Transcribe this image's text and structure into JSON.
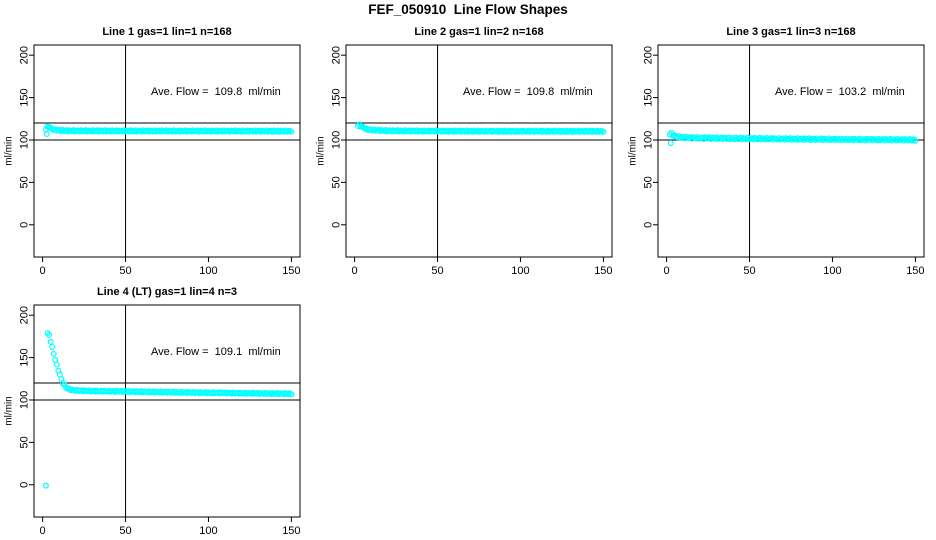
{
  "main_title": "FEF_050910  Line Flow Shapes",
  "chart_data": {
    "type": "scatter",
    "title": "FEF_050910  Line Flow Shapes",
    "xlabel": "",
    "ylabel": "ml/min",
    "xticks": [
      0,
      50,
      100,
      150
    ],
    "yticks": [
      0,
      50,
      100,
      150,
      200
    ],
    "xlim": [
      0,
      150
    ],
    "ylim": [
      0,
      200
    ],
    "x_render_range": [
      -5.2,
      155.2
    ],
    "y_render_range": [
      -38,
      212
    ],
    "grid": false,
    "legend": "none",
    "marker": "open-circle",
    "marker_radius": 2.4,
    "marker_color": "#00FFFF",
    "axis_color": "#000000",
    "background_color": "#FFFFFF",
    "reference_lines": {
      "h": [
        120,
        100
      ],
      "v": [
        50
      ]
    },
    "annotation_anchor_data_xy": [
      66,
      152
    ],
    "panels": [
      {
        "title": "Line 1 gas=1 lin=1 n=168",
        "annotation": "Ave. Flow =  109.8  ml/min",
        "ave_flow_ml_min": 109.8,
        "gas": 1,
        "lin": 1,
        "n": 168,
        "marker_count": 168,
        "jitter": 0.8,
        "trace": [
          [
            2,
            112.5
          ],
          [
            3,
            115.5
          ],
          [
            4,
            115.8
          ],
          [
            5,
            113.5
          ],
          [
            7,
            112
          ],
          [
            10,
            111.3
          ],
          [
            15,
            110.9
          ],
          [
            25,
            110.7
          ],
          [
            50,
            110.6
          ],
          [
            100,
            110.5
          ],
          [
            150,
            110.4
          ]
        ],
        "outliers": [
          [
            2.5,
            107
          ]
        ]
      },
      {
        "title": "Line 2 gas=1 lin=2 n=168",
        "annotation": "Ave. Flow =  109.8  ml/min",
        "ave_flow_ml_min": 109.8,
        "gas": 1,
        "lin": 2,
        "n": 168,
        "marker_count": 168,
        "jitter": 0.8,
        "trace": [
          [
            2,
            116.5
          ],
          [
            3,
            117.8
          ],
          [
            4,
            116.2
          ],
          [
            6,
            113.8
          ],
          [
            8,
            112.4
          ],
          [
            12,
            111.4
          ],
          [
            20,
            110.9
          ],
          [
            40,
            110.5
          ],
          [
            80,
            110.3
          ],
          [
            150,
            110.2
          ]
        ],
        "outliers": []
      },
      {
        "title": "Line 3 gas=1 lin=3 n=168",
        "annotation": "Ave. Flow =  103.2  ml/min",
        "ave_flow_ml_min": 103.2,
        "gas": 1,
        "lin": 3,
        "n": 168,
        "marker_count": 168,
        "jitter": 1.0,
        "trace": [
          [
            2,
            106.5
          ],
          [
            3,
            107.8
          ],
          [
            4,
            105.5
          ],
          [
            6,
            103.8
          ],
          [
            10,
            103
          ],
          [
            20,
            102.4
          ],
          [
            40,
            101.8
          ],
          [
            80,
            101
          ],
          [
            120,
            100.5
          ],
          [
            150,
            100.1
          ]
        ],
        "outliers": [
          [
            2.5,
            96.5
          ]
        ]
      },
      {
        "title": "Line 4 (LT) gas=1 lin=4 n=3",
        "annotation": "Ave. Flow =  109.1  ml/min",
        "ave_flow_ml_min": 109.1,
        "gas": 1,
        "lin": 4,
        "n": 3,
        "marker_count": 160,
        "jitter": 0.7,
        "trace": [
          [
            3,
            179
          ],
          [
            4,
            176
          ],
          [
            5,
            168
          ],
          [
            6,
            160
          ],
          [
            7,
            152
          ],
          [
            8,
            145
          ],
          [
            9,
            138
          ],
          [
            10,
            132
          ],
          [
            11,
            126
          ],
          [
            12,
            121
          ],
          [
            13,
            117.5
          ],
          [
            14,
            115
          ],
          [
            15,
            113.5
          ],
          [
            17,
            112
          ],
          [
            20,
            111.2
          ],
          [
            30,
            110.5
          ],
          [
            50,
            110
          ],
          [
            80,
            109
          ],
          [
            120,
            108
          ],
          [
            150,
            107.3
          ]
        ],
        "outliers": [
          [
            2,
            -1
          ]
        ]
      }
    ]
  }
}
